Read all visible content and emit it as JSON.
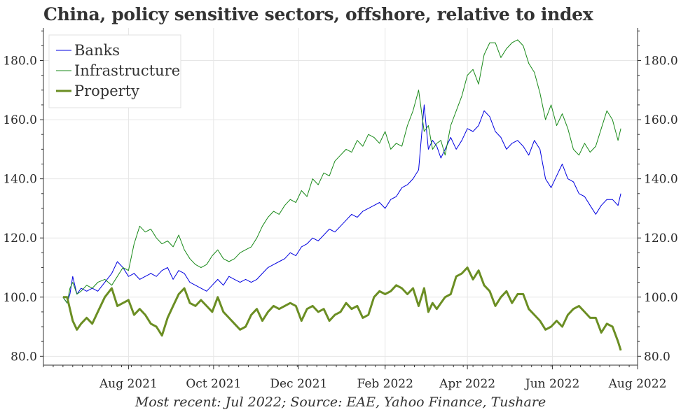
{
  "title": "China, policy sensitive sectors, offshore, relative to index",
  "caption": "Most recent: Jul 2022; Source: EAE, Yahoo Finance, Tushare",
  "chart_data": {
    "type": "line",
    "x_range": [
      "2021-06-01",
      "2022-08-01"
    ],
    "ylim": [
      77,
      191
    ],
    "y_ticks": [
      80,
      100,
      120,
      140,
      160,
      180
    ],
    "y_tick_labels": [
      "80.0",
      "100.0",
      "120.0",
      "140.0",
      "160.0",
      "180.0"
    ],
    "x_ticks": [
      "2021-08-01",
      "2021-10-01",
      "2021-12-01",
      "2022-02-01",
      "2022-04-01",
      "2022-06-01",
      "2022-08-01"
    ],
    "x_tick_labels": [
      "Aug 2021",
      "Oct 2021",
      "Dec 2021",
      "Feb 2022",
      "Apr 2022",
      "Jun 2022",
      "Aug 2022"
    ],
    "grid": true,
    "legend_position": "top-left",
    "y_axis_sides": [
      "left",
      "right"
    ],
    "series": [
      {
        "name": "Banks",
        "color": "#0000e0",
        "x": [
          "2021-06-15",
          "2021-06-18",
          "2021-06-20",
          "2021-06-22",
          "2021-06-25",
          "2021-06-28",
          "2021-07-02",
          "2021-07-06",
          "2021-07-10",
          "2021-07-15",
          "2021-07-20",
          "2021-07-24",
          "2021-07-28",
          "2021-08-01",
          "2021-08-05",
          "2021-08-09",
          "2021-08-13",
          "2021-08-17",
          "2021-08-21",
          "2021-08-25",
          "2021-08-29",
          "2021-09-02",
          "2021-09-06",
          "2021-09-10",
          "2021-09-14",
          "2021-09-18",
          "2021-09-22",
          "2021-09-26",
          "2021-09-30",
          "2021-10-04",
          "2021-10-08",
          "2021-10-12",
          "2021-10-16",
          "2021-10-20",
          "2021-10-24",
          "2021-10-28",
          "2021-11-01",
          "2021-11-05",
          "2021-11-09",
          "2021-11-13",
          "2021-11-17",
          "2021-11-21",
          "2021-11-25",
          "2021-11-29",
          "2021-12-03",
          "2021-12-07",
          "2021-12-11",
          "2021-12-15",
          "2021-12-19",
          "2021-12-23",
          "2021-12-27",
          "2021-12-31",
          "2022-01-04",
          "2022-01-08",
          "2022-01-12",
          "2022-01-16",
          "2022-01-20",
          "2022-01-24",
          "2022-01-28",
          "2022-02-01",
          "2022-02-05",
          "2022-02-09",
          "2022-02-13",
          "2022-02-17",
          "2022-02-21",
          "2022-02-25",
          "2022-03-01",
          "2022-03-04",
          "2022-03-07",
          "2022-03-10",
          "2022-03-13",
          "2022-03-16",
          "2022-03-20",
          "2022-03-24",
          "2022-03-28",
          "2022-04-01",
          "2022-04-05",
          "2022-04-09",
          "2022-04-13",
          "2022-04-17",
          "2022-04-21",
          "2022-04-25",
          "2022-04-29",
          "2022-05-03",
          "2022-05-07",
          "2022-05-11",
          "2022-05-15",
          "2022-05-19",
          "2022-05-23",
          "2022-05-27",
          "2022-05-31",
          "2022-06-04",
          "2022-06-08",
          "2022-06-12",
          "2022-06-16",
          "2022-06-20",
          "2022-06-24",
          "2022-06-28",
          "2022-07-02",
          "2022-07-06",
          "2022-07-10",
          "2022-07-14",
          "2022-07-18",
          "2022-07-20"
        ],
        "y": [
          100,
          98,
          101,
          107,
          101,
          103,
          102,
          103,
          102,
          105,
          108,
          112,
          110,
          107,
          108,
          106,
          107,
          108,
          107,
          109,
          110,
          106,
          109,
          108,
          105,
          104,
          103,
          102,
          104,
          106,
          104,
          107,
          106,
          105,
          106,
          105,
          106,
          108,
          110,
          111,
          112,
          113,
          115,
          114,
          117,
          118,
          120,
          119,
          121,
          123,
          122,
          124,
          126,
          128,
          127,
          129,
          130,
          131,
          132,
          130,
          133,
          134,
          137,
          138,
          140,
          143,
          165,
          150,
          153,
          151,
          147,
          150,
          154,
          150,
          153,
          157,
          156,
          158,
          163,
          161,
          156,
          154,
          150,
          152,
          153,
          151,
          148,
          153,
          150,
          140,
          137,
          141,
          145,
          140,
          139,
          135,
          134,
          131,
          128,
          131,
          133,
          133,
          131,
          135
        ]
      },
      {
        "name": "Infrastructure",
        "color": "#1a8a1a",
        "x": [
          "2021-06-15",
          "2021-06-18",
          "2021-06-20",
          "2021-06-22",
          "2021-06-25",
          "2021-06-28",
          "2021-07-02",
          "2021-07-06",
          "2021-07-10",
          "2021-07-15",
          "2021-07-20",
          "2021-07-24",
          "2021-07-28",
          "2021-08-01",
          "2021-08-05",
          "2021-08-09",
          "2021-08-13",
          "2021-08-17",
          "2021-08-21",
          "2021-08-25",
          "2021-08-29",
          "2021-09-02",
          "2021-09-06",
          "2021-09-10",
          "2021-09-14",
          "2021-09-18",
          "2021-09-22",
          "2021-09-26",
          "2021-09-30",
          "2021-10-04",
          "2021-10-08",
          "2021-10-12",
          "2021-10-16",
          "2021-10-20",
          "2021-10-24",
          "2021-10-28",
          "2021-11-01",
          "2021-11-05",
          "2021-11-09",
          "2021-11-13",
          "2021-11-17",
          "2021-11-21",
          "2021-11-25",
          "2021-11-29",
          "2021-12-03",
          "2021-12-07",
          "2021-12-11",
          "2021-12-15",
          "2021-12-19",
          "2021-12-23",
          "2021-12-27",
          "2021-12-31",
          "2022-01-04",
          "2022-01-08",
          "2022-01-12",
          "2022-01-16",
          "2022-01-20",
          "2022-01-24",
          "2022-01-28",
          "2022-02-01",
          "2022-02-05",
          "2022-02-09",
          "2022-02-13",
          "2022-02-17",
          "2022-02-21",
          "2022-02-25",
          "2022-03-01",
          "2022-03-04",
          "2022-03-07",
          "2022-03-10",
          "2022-03-13",
          "2022-03-16",
          "2022-03-20",
          "2022-03-24",
          "2022-03-28",
          "2022-04-01",
          "2022-04-05",
          "2022-04-09",
          "2022-04-13",
          "2022-04-17",
          "2022-04-21",
          "2022-04-25",
          "2022-04-29",
          "2022-05-03",
          "2022-05-07",
          "2022-05-11",
          "2022-05-15",
          "2022-05-19",
          "2022-05-23",
          "2022-05-27",
          "2022-05-31",
          "2022-06-04",
          "2022-06-08",
          "2022-06-12",
          "2022-06-16",
          "2022-06-20",
          "2022-06-24",
          "2022-06-28",
          "2022-07-02",
          "2022-07-06",
          "2022-07-10",
          "2022-07-14",
          "2022-07-18",
          "2022-07-20"
        ],
        "y": [
          100,
          98,
          103,
          105,
          101,
          102,
          104,
          103,
          105,
          106,
          104,
          107,
          110,
          109,
          118,
          124,
          122,
          123,
          120,
          118,
          119,
          117,
          121,
          116,
          113,
          111,
          110,
          111,
          114,
          116,
          113,
          112,
          113,
          115,
          116,
          117,
          120,
          124,
          127,
          129,
          128,
          131,
          133,
          132,
          136,
          134,
          140,
          138,
          142,
          141,
          146,
          148,
          150,
          149,
          153,
          151,
          155,
          154,
          152,
          156,
          150,
          152,
          151,
          158,
          163,
          170,
          156,
          158,
          150,
          152,
          153,
          148,
          158,
          163,
          168,
          175,
          177,
          172,
          182,
          186,
          186,
          181,
          184,
          186,
          187,
          185,
          179,
          176,
          169,
          160,
          165,
          158,
          162,
          157,
          150,
          148,
          152,
          149,
          151,
          157,
          163,
          160,
          153,
          157
        ]
      },
      {
        "name": "Property",
        "color": "#6b8e23",
        "x": [
          "2021-06-15",
          "2021-06-18",
          "2021-06-20",
          "2021-06-22",
          "2021-06-25",
          "2021-06-28",
          "2021-07-02",
          "2021-07-06",
          "2021-07-10",
          "2021-07-15",
          "2021-07-20",
          "2021-07-24",
          "2021-07-28",
          "2021-08-01",
          "2021-08-05",
          "2021-08-09",
          "2021-08-13",
          "2021-08-17",
          "2021-08-21",
          "2021-08-25",
          "2021-08-29",
          "2021-09-02",
          "2021-09-06",
          "2021-09-10",
          "2021-09-14",
          "2021-09-18",
          "2021-09-22",
          "2021-09-26",
          "2021-09-30",
          "2021-10-04",
          "2021-10-08",
          "2021-10-12",
          "2021-10-16",
          "2021-10-20",
          "2021-10-24",
          "2021-10-28",
          "2021-11-01",
          "2021-11-05",
          "2021-11-09",
          "2021-11-13",
          "2021-11-17",
          "2021-11-21",
          "2021-11-25",
          "2021-11-29",
          "2021-12-03",
          "2021-12-07",
          "2021-12-11",
          "2021-12-15",
          "2021-12-19",
          "2021-12-23",
          "2021-12-27",
          "2021-12-31",
          "2022-01-04",
          "2022-01-08",
          "2022-01-12",
          "2022-01-16",
          "2022-01-20",
          "2022-01-24",
          "2022-01-28",
          "2022-02-01",
          "2022-02-05",
          "2022-02-09",
          "2022-02-13",
          "2022-02-17",
          "2022-02-21",
          "2022-02-25",
          "2022-03-01",
          "2022-03-04",
          "2022-03-07",
          "2022-03-10",
          "2022-03-13",
          "2022-03-16",
          "2022-03-20",
          "2022-03-24",
          "2022-03-28",
          "2022-04-01",
          "2022-04-05",
          "2022-04-09",
          "2022-04-13",
          "2022-04-17",
          "2022-04-21",
          "2022-04-25",
          "2022-04-29",
          "2022-05-03",
          "2022-05-07",
          "2022-05-11",
          "2022-05-15",
          "2022-05-19",
          "2022-05-23",
          "2022-05-27",
          "2022-05-31",
          "2022-06-04",
          "2022-06-08",
          "2022-06-12",
          "2022-06-16",
          "2022-06-20",
          "2022-06-24",
          "2022-06-28",
          "2022-07-02",
          "2022-07-06",
          "2022-07-10",
          "2022-07-14",
          "2022-07-18",
          "2022-07-20"
        ],
        "y": [
          100,
          100,
          96,
          92,
          89,
          91,
          93,
          91,
          95,
          100,
          103,
          97,
          98,
          99,
          94,
          96,
          94,
          91,
          90,
          87,
          93,
          97,
          101,
          103,
          98,
          97,
          99,
          97,
          95,
          100,
          95,
          93,
          91,
          89,
          90,
          94,
          96,
          92,
          95,
          97,
          96,
          97,
          98,
          97,
          92,
          96,
          97,
          95,
          96,
          92,
          94,
          95,
          98,
          96,
          97,
          93,
          94,
          100,
          102,
          101,
          102,
          104,
          103,
          101,
          103,
          97,
          103,
          95,
          98,
          96,
          98,
          100,
          101,
          107,
          108,
          110,
          106,
          109,
          104,
          102,
          97,
          100,
          102,
          98,
          101,
          101,
          96,
          94,
          92,
          89,
          90,
          92,
          90,
          94,
          96,
          97,
          95,
          93,
          93,
          88,
          91,
          90,
          85,
          82
        ]
      }
    ]
  }
}
